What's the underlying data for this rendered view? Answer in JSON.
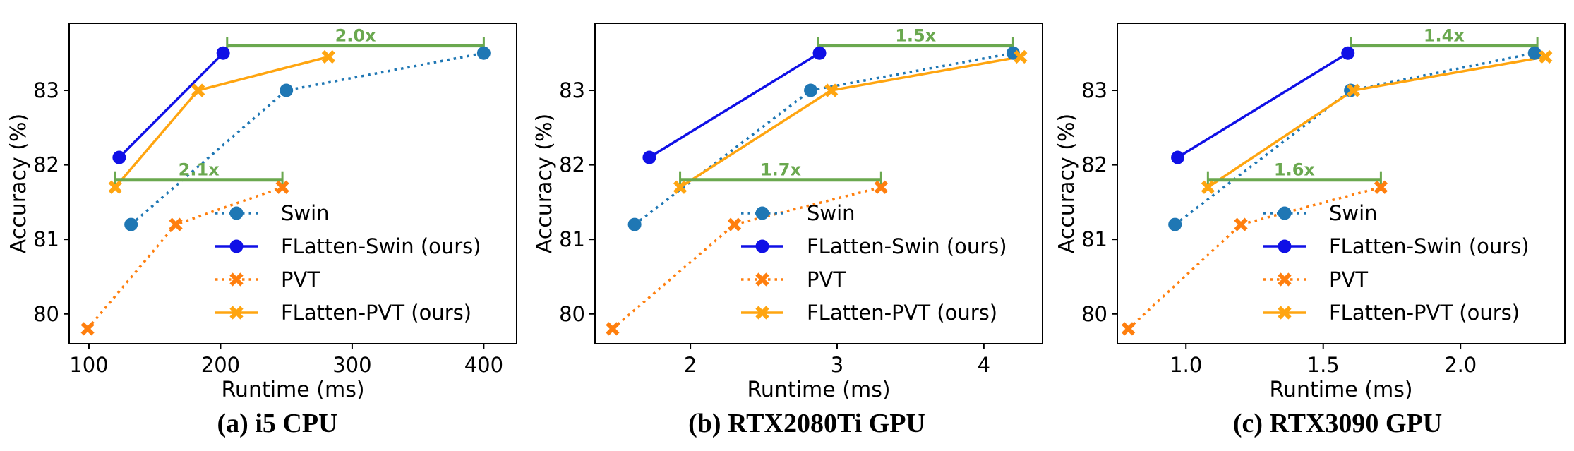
{
  "colors": {
    "swin": "#1f77b4",
    "flatten_swin": "#1010e6",
    "pvt": "#ff7f0e",
    "flatten_pvt": "#ffa510",
    "speedup": "#6aa84f",
    "axis": "#000000"
  },
  "chart_data": [
    {
      "type": "line",
      "caption": "(a) i5 CPU",
      "xlabel": "Runtime (ms)",
      "ylabel": "Accuracy (%)",
      "xlim": [
        85,
        425
      ],
      "ylim": [
        79.6,
        83.9
      ],
      "xticks": [
        100,
        200,
        300,
        400
      ],
      "xtick_labels": [
        "100",
        "200",
        "300",
        "400"
      ],
      "yticks": [
        80,
        81,
        82,
        83
      ],
      "ytick_labels": [
        "80",
        "81",
        "82",
        "83"
      ],
      "legend": {
        "location": "bottom-right"
      },
      "series": [
        {
          "name": "Swin",
          "style": "dotted",
          "marker": "circle",
          "x": [
            132,
            250,
            400
          ],
          "y": [
            81.2,
            83.0,
            83.5
          ]
        },
        {
          "name": "FLatten-Swin (ours)",
          "style": "solid",
          "marker": "circle",
          "x": [
            123,
            202
          ],
          "y": [
            82.1,
            83.5
          ]
        },
        {
          "name": "PVT",
          "style": "dotted",
          "marker": "x",
          "x": [
            99,
            166,
            247
          ],
          "y": [
            79.8,
            81.2,
            81.7
          ]
        },
        {
          "name": "FLatten-PVT (ours)",
          "style": "solid",
          "marker": "x",
          "x": [
            120,
            183,
            282
          ],
          "y": [
            81.7,
            83.0,
            83.45
          ]
        }
      ],
      "speedups": [
        {
          "label": "2.0x",
          "x_start": 205,
          "x_end": 400,
          "y": 83.6
        },
        {
          "label": "2.1x",
          "x_start": 120,
          "x_end": 247,
          "y": 81.8
        }
      ]
    },
    {
      "type": "line",
      "caption": "(b) RTX2080Ti GPU",
      "xlabel": "Runtime (ms)",
      "ylabel": "Accuracy (%)",
      "xlim": [
        1.35,
        4.4
      ],
      "ylim": [
        79.6,
        83.9
      ],
      "xticks": [
        2,
        3,
        4
      ],
      "xtick_labels": [
        "2",
        "3",
        "4"
      ],
      "yticks": [
        80,
        81,
        82,
        83
      ],
      "ytick_labels": [
        "80",
        "81",
        "82",
        "83"
      ],
      "legend": {
        "location": "bottom-right"
      },
      "series": [
        {
          "name": "Swin",
          "style": "dotted",
          "marker": "circle",
          "x": [
            1.62,
            2.82,
            4.2
          ],
          "y": [
            81.2,
            83.0,
            83.5
          ]
        },
        {
          "name": "FLatten-Swin (ours)",
          "style": "solid",
          "marker": "circle",
          "x": [
            1.72,
            2.88
          ],
          "y": [
            82.1,
            83.5
          ]
        },
        {
          "name": "PVT",
          "style": "dotted",
          "marker": "x",
          "x": [
            1.47,
            2.3,
            3.3
          ],
          "y": [
            79.8,
            81.2,
            81.7
          ]
        },
        {
          "name": "FLatten-PVT (ours)",
          "style": "solid",
          "marker": "x",
          "x": [
            1.93,
            2.96,
            4.25
          ],
          "y": [
            81.7,
            83.0,
            83.45
          ]
        }
      ],
      "speedups": [
        {
          "label": "1.5x",
          "x_start": 2.87,
          "x_end": 4.2,
          "y": 83.6
        },
        {
          "label": "1.7x",
          "x_start": 1.93,
          "x_end": 3.3,
          "y": 81.8
        }
      ]
    },
    {
      "type": "line",
      "caption": "(c) RTX3090 GPU",
      "xlabel": "Runtime (ms)",
      "ylabel": "Accuracy (%)",
      "xlim": [
        0.75,
        2.38
      ],
      "ylim": [
        79.6,
        83.9
      ],
      "xticks": [
        1.0,
        1.5,
        2.0
      ],
      "xtick_labels": [
        "1.0",
        "1.5",
        "2.0"
      ],
      "yticks": [
        80,
        81,
        82,
        83
      ],
      "ytick_labels": [
        "80",
        "81",
        "82",
        "83"
      ],
      "legend": {
        "location": "bottom-right"
      },
      "series": [
        {
          "name": "Swin",
          "style": "dotted",
          "marker": "circle",
          "x": [
            0.96,
            1.6,
            2.27
          ],
          "y": [
            81.2,
            83.0,
            83.5
          ]
        },
        {
          "name": "FLatten-Swin (ours)",
          "style": "solid",
          "marker": "circle",
          "x": [
            0.97,
            1.59
          ],
          "y": [
            82.1,
            83.5
          ]
        },
        {
          "name": "PVT",
          "style": "dotted",
          "marker": "x",
          "x": [
            0.79,
            1.2,
            1.71
          ],
          "y": [
            79.8,
            81.2,
            81.7
          ]
        },
        {
          "name": "FLatten-PVT (ours)",
          "style": "solid",
          "marker": "x",
          "x": [
            1.08,
            1.61,
            2.31
          ],
          "y": [
            81.7,
            83.0,
            83.45
          ]
        }
      ],
      "speedups": [
        {
          "label": "1.4x",
          "x_start": 1.6,
          "x_end": 2.28,
          "y": 83.6
        },
        {
          "label": "1.6x",
          "x_start": 1.08,
          "x_end": 1.71,
          "y": 81.8
        }
      ]
    }
  ]
}
